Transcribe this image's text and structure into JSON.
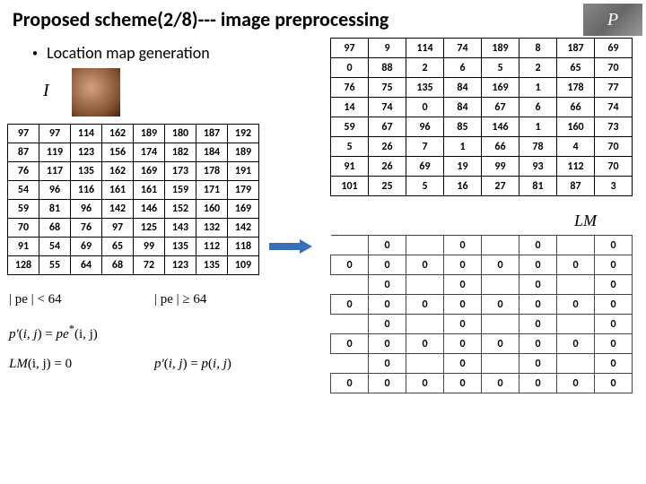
{
  "title": "Proposed scheme(2/8)--- image preprocessing",
  "bullet": "Location map generation",
  "top_right_label": "P",
  "label_I": "I",
  "label_LM": "LM",
  "table_left": {
    "rows": [
      [
        97,
        97,
        114,
        162,
        189,
        180,
        187,
        192
      ],
      [
        87,
        119,
        123,
        156,
        174,
        182,
        184,
        189
      ],
      [
        76,
        117,
        135,
        162,
        169,
        173,
        178,
        191
      ],
      [
        54,
        96,
        116,
        161,
        161,
        159,
        171,
        179
      ],
      [
        59,
        81,
        96,
        142,
        146,
        152,
        160,
        169
      ],
      [
        70,
        68,
        76,
        97,
        125,
        143,
        132,
        142
      ],
      [
        91,
        54,
        69,
        65,
        99,
        135,
        112,
        118
      ],
      [
        128,
        55,
        64,
        68,
        72,
        123,
        135,
        109
      ]
    ]
  },
  "table_topright": {
    "rows": [
      [
        97,
        9,
        114,
        74,
        189,
        8,
        187,
        69
      ],
      [
        0,
        88,
        2,
        6,
        5,
        2,
        65,
        70
      ],
      [
        76,
        75,
        135,
        84,
        169,
        1,
        178,
        77
      ],
      [
        14,
        74,
        0,
        84,
        67,
        6,
        66,
        74
      ],
      [
        59,
        67,
        96,
        85,
        146,
        1,
        160,
        73
      ],
      [
        5,
        26,
        7,
        1,
        66,
        78,
        4,
        70
      ],
      [
        91,
        26,
        69,
        19,
        99,
        93,
        112,
        70
      ],
      [
        101,
        25,
        5,
        16,
        27,
        81,
        87,
        3
      ]
    ]
  },
  "table_lm": {
    "rows": [
      [
        "",
        0,
        "",
        0,
        "",
        0,
        "",
        0
      ],
      [
        0,
        0,
        0,
        0,
        0,
        0,
        0,
        0
      ],
      [
        "",
        0,
        "",
        0,
        "",
        0,
        "",
        0
      ],
      [
        0,
        0,
        0,
        0,
        0,
        0,
        0,
        0
      ],
      [
        "",
        0,
        "",
        0,
        "",
        0,
        "",
        0
      ],
      [
        0,
        0,
        0,
        0,
        0,
        0,
        0,
        0
      ],
      [
        "",
        0,
        "",
        0,
        "",
        0,
        "",
        0
      ],
      [
        0,
        0,
        0,
        0,
        0,
        0,
        0,
        0
      ]
    ]
  },
  "formulas": {
    "f1": "| pe | < 64",
    "f2": "| pe | ≥ 64",
    "f3": "p'(i, j) = pe*(i, j)",
    "f4": "LM(i, j) = 0",
    "f5": "p'(i, j) = p(i, j)"
  }
}
